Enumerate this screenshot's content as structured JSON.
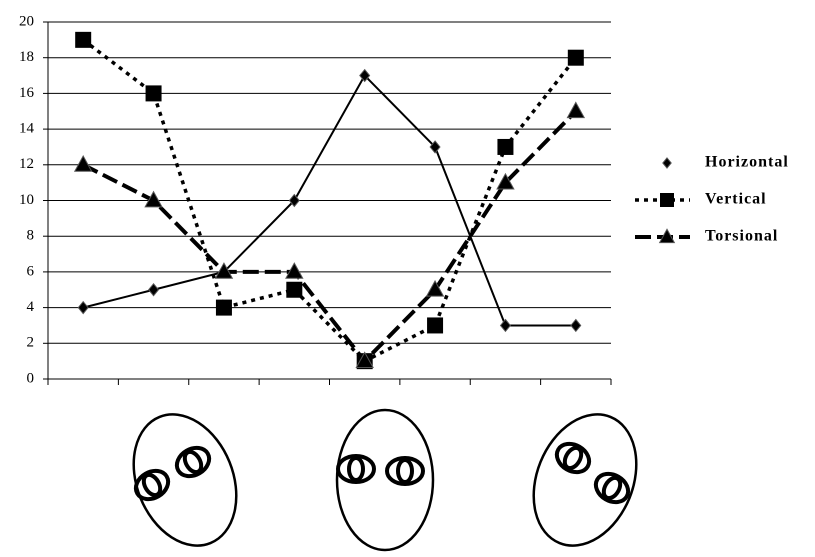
{
  "chart_data": {
    "type": "line",
    "categories": [
      null,
      null,
      null,
      null,
      null,
      null,
      null,
      null
    ],
    "ylim": [
      0,
      20
    ],
    "yticks": [
      0,
      2,
      4,
      6,
      8,
      10,
      12,
      14,
      16,
      18,
      20
    ],
    "grid": true,
    "legend": "right",
    "series": [
      {
        "name": "Horizontal",
        "color": "#000000",
        "marker": "diamond",
        "line_style": "solid",
        "values": [
          4,
          5,
          6,
          10,
          17,
          13,
          3,
          3
        ]
      },
      {
        "name": "Vertical",
        "color": "#000000",
        "marker": "square",
        "line_style": "dotted",
        "values": [
          19,
          16,
          4,
          5,
          1,
          3,
          13,
          18
        ]
      },
      {
        "name": "Torsional",
        "color": "#000000",
        "marker": "triangle",
        "line_style": "dashed",
        "values": [
          12,
          10,
          6,
          6,
          1,
          5,
          11,
          15
        ]
      }
    ]
  }
}
